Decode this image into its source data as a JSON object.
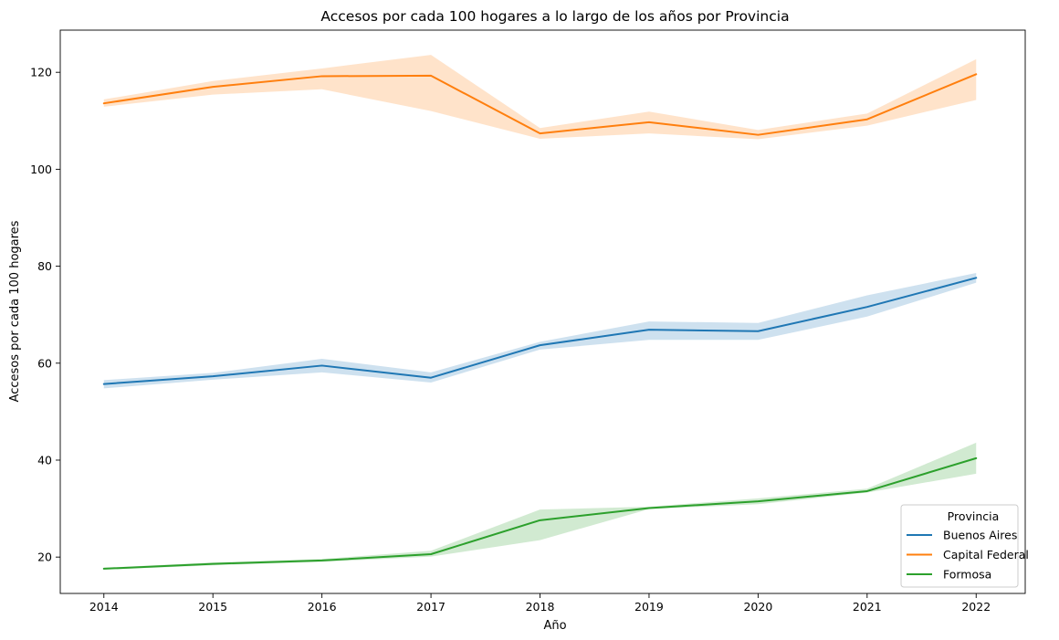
{
  "chart_data": {
    "type": "line",
    "title": "Accesos por cada 100 hogares a lo largo de los años por Provincia",
    "xlabel": "Año",
    "ylabel": "Accesos por cada 100 hogares",
    "x": [
      2014,
      2015,
      2016,
      2017,
      2018,
      2019,
      2020,
      2021,
      2022
    ],
    "xlim": [
      2013.6,
      2022.45
    ],
    "ylim": [
      12.5,
      128.7
    ],
    "yticks": [
      20,
      40,
      60,
      80,
      100,
      120
    ],
    "grid": false,
    "legend": {
      "title": "Provincia",
      "placement": "lower-right"
    },
    "series": [
      {
        "name": "Buenos Aires",
        "color": "#1f77b4",
        "values": [
          55.7,
          57.3,
          59.5,
          57.0,
          63.7,
          66.9,
          66.6,
          71.6,
          77.6
        ],
        "ci_low": [
          54.8,
          56.6,
          58.1,
          56.0,
          62.8,
          64.8,
          64.8,
          69.6,
          76.6
        ],
        "ci_high": [
          56.5,
          58.0,
          60.9,
          58.1,
          64.4,
          68.6,
          68.3,
          74.0,
          78.6
        ]
      },
      {
        "name": "Capital Federal",
        "color": "#ff7f0e",
        "values": [
          113.6,
          117.0,
          119.2,
          119.3,
          107.4,
          109.7,
          107.1,
          110.3,
          119.6
        ],
        "ci_low": [
          112.9,
          115.4,
          116.5,
          112.0,
          106.3,
          107.4,
          106.2,
          109.0,
          114.3
        ],
        "ci_high": [
          114.4,
          118.2,
          120.8,
          123.6,
          108.5,
          111.9,
          108.1,
          111.5,
          122.7
        ]
      },
      {
        "name": "Formosa",
        "color": "#2ca02c",
        "values": [
          17.6,
          18.6,
          19.3,
          20.6,
          27.6,
          30.1,
          31.5,
          33.6,
          40.4
        ],
        "ci_low": [
          17.4,
          18.3,
          19.0,
          20.1,
          23.5,
          29.9,
          30.9,
          33.3,
          37.2
        ],
        "ci_high": [
          17.8,
          18.9,
          19.6,
          21.3,
          29.8,
          30.4,
          32.1,
          34.1,
          43.6
        ]
      }
    ]
  }
}
